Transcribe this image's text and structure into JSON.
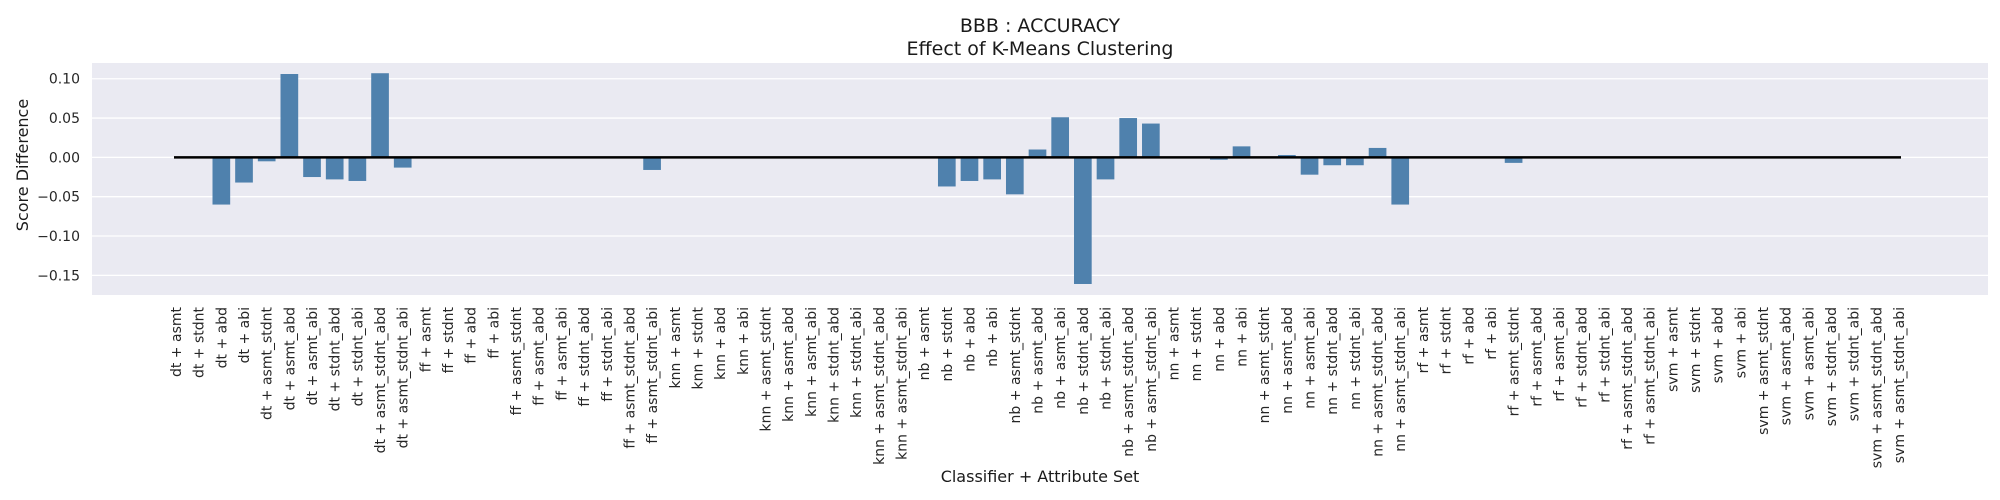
{
  "chart_data": {
    "type": "bar",
    "title": "BBB : ACCURACY",
    "subtitle": "Effect of K-Means Clustering",
    "xlabel": "Classifier + Attribute Set",
    "ylabel": "Score Difference",
    "ylim": [
      -0.175,
      0.12
    ],
    "yticks": [
      0.1,
      0.05,
      0.0,
      -0.05,
      -0.1,
      -0.15
    ],
    "ytick_labels": [
      "0.10",
      "0.05",
      "0.00",
      "−0.05",
      "−0.10",
      "−0.15"
    ],
    "grid": true,
    "bar_color": "#4f81ad",
    "background_color": "#eaeaf2",
    "reference_line": 0,
    "categories": [
      "dt + asmt",
      "dt + stdnt",
      "dt + abd",
      "dt + abi",
      "dt + asmt_stdnt",
      "dt + asmt_abd",
      "dt + asmt_abi",
      "dt + stdnt_abd",
      "dt + stdnt_abi",
      "dt + asmt_stdnt_abd",
      "dt + asmt_stdnt_abi",
      "ff + asmt",
      "ff + stdnt",
      "ff + abd",
      "ff + abi",
      "ff + asmt_stdnt",
      "ff + asmt_abd",
      "ff + asmt_abi",
      "ff + stdnt_abd",
      "ff + stdnt_abi",
      "ff + asmt_stdnt_abd",
      "ff + asmt_stdnt_abi",
      "knn + asmt",
      "knn + stdnt",
      "knn + abd",
      "knn + abi",
      "knn + asmt_stdnt",
      "knn + asmt_abd",
      "knn + asmt_abi",
      "knn + stdnt_abd",
      "knn + stdnt_abi",
      "knn + asmt_stdnt_abd",
      "knn + asmt_stdnt_abi",
      "nb + asmt",
      "nb + stdnt",
      "nb + abd",
      "nb + abi",
      "nb + asmt_stdnt",
      "nb + asmt_abd",
      "nb + asmt_abi",
      "nb + stdnt_abd",
      "nb + stdnt_abi",
      "nb + asmt_stdnt_abd",
      "nb + asmt_stdnt_abi",
      "nn + asmt",
      "nn + stdnt",
      "nn + abd",
      "nn + abi",
      "nn + asmt_stdnt",
      "nn + asmt_abd",
      "nn + asmt_abi",
      "nn + stdnt_abd",
      "nn + stdnt_abi",
      "nn + asmt_stdnt_abd",
      "nn + asmt_stdnt_abi",
      "rf + asmt",
      "rf + stdnt",
      "rf + abd",
      "rf + abi",
      "rf + asmt_stdnt",
      "rf + asmt_abd",
      "rf + asmt_abi",
      "rf + stdnt_abd",
      "rf + stdnt_abi",
      "rf + asmt_stdnt_abd",
      "rf + asmt_stdnt_abi",
      "svm + asmt",
      "svm + stdnt",
      "svm + abd",
      "svm + abi",
      "svm + asmt_stdnt",
      "svm + asmt_abd",
      "svm + asmt_abi",
      "svm + stdnt_abd",
      "svm + stdnt_abi",
      "svm + asmt_stdnt_abd",
      "svm + asmt_stdnt_abi"
    ],
    "values": [
      0,
      0,
      -0.06,
      -0.032,
      -0.005,
      0.106,
      -0.025,
      -0.028,
      -0.03,
      0.107,
      -0.013,
      0,
      0,
      0,
      0,
      0,
      0,
      0,
      0,
      0,
      0,
      -0.016,
      0,
      0,
      0,
      0,
      0,
      0,
      0,
      0,
      0,
      0,
      0,
      0,
      -0.037,
      -0.03,
      -0.028,
      -0.047,
      0.01,
      0.051,
      -0.161,
      -0.028,
      0.05,
      0.043,
      0,
      0,
      -0.003,
      0.014,
      0,
      0.003,
      -0.022,
      -0.01,
      -0.01,
      0.012,
      -0.06,
      0,
      0,
      0,
      0,
      -0.007,
      0,
      0,
      0,
      0,
      0,
      0,
      0,
      0,
      0,
      0,
      0,
      0,
      0,
      0,
      0,
      0,
      0
    ]
  }
}
